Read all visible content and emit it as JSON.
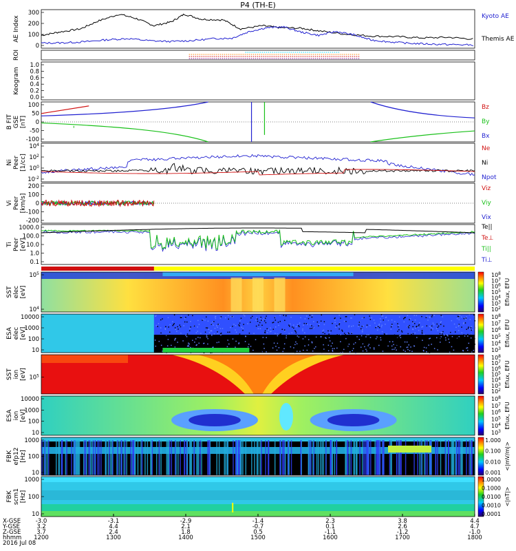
{
  "title": "P4 (TH-E)",
  "colors": {
    "black": "#000000",
    "blue": "#1f1fd0",
    "red": "#d01010",
    "green": "#18c018",
    "yellow": "#ffff00"
  },
  "chart_data": [
    {
      "id": "ae",
      "type": "line",
      "ylabel": "AE Index",
      "ylim": [
        0,
        300
      ],
      "yticks": [
        "0",
        "100",
        "200",
        "300"
      ],
      "legend": [
        {
          "text": "Kyoto AE",
          "color": "#1f1fd0"
        },
        {
          "text": "Themis AE",
          "color": "#000000"
        }
      ],
      "series": [
        {
          "name": "Themis AE",
          "color": "#000000",
          "x": [
            0,
            4,
            9,
            13,
            18,
            22,
            26,
            30,
            33,
            37,
            42,
            46,
            51,
            55,
            60,
            64,
            70,
            76,
            82,
            88,
            94,
            100
          ],
          "y": [
            100,
            125,
            150,
            210,
            265,
            230,
            175,
            205,
            265,
            225,
            220,
            150,
            175,
            160,
            155,
            135,
            110,
            95,
            90,
            80,
            85,
            70
          ]
        },
        {
          "name": "Kyoto AE",
          "color": "#1f1fd0",
          "x": [
            0,
            5,
            10,
            15,
            20,
            25,
            30,
            35,
            40,
            44,
            48,
            52,
            56,
            60,
            64,
            68,
            72,
            76,
            80,
            85,
            90,
            95,
            100
          ],
          "y": [
            40,
            42,
            50,
            65,
            75,
            58,
            52,
            60,
            75,
            78,
            130,
            160,
            165,
            125,
            100,
            130,
            105,
            65,
            50,
            38,
            32,
            28,
            25
          ]
        }
      ]
    },
    {
      "id": "roi",
      "type": "line",
      "ylabel": "ROI"
    },
    {
      "id": "keogram",
      "type": "line",
      "ylabel": "Keogram",
      "ylim": [
        0.0,
        1.0
      ],
      "yticks": [
        "0.0",
        "0.2",
        "0.4",
        "0.6",
        "0.8",
        "1.0"
      ]
    },
    {
      "id": "bfit",
      "type": "line",
      "ylabel": "B FIT\nGSE\n[nT]",
      "ylim": [
        -100,
        100
      ],
      "yticks": [
        "-100",
        "-50",
        "0",
        "50",
        "100"
      ],
      "legend": [
        {
          "text": "Bz",
          "color": "#d01010"
        },
        {
          "text": "By",
          "color": "#18c018"
        },
        {
          "text": "Bx",
          "color": "#1f1fd0"
        }
      ],
      "series": [
        {
          "name": "Bz",
          "color": "#d01010",
          "x": [
            0,
            3,
            6,
            9,
            12
          ],
          "y": [
            42,
            52,
            62,
            72,
            80
          ]
        },
        {
          "name": "By",
          "color": "#18c018",
          "x": [
            0,
            8,
            16,
            24,
            30,
            36,
            39,
            40
          ],
          "y": [
            -20,
            -25,
            -30,
            -40,
            -55,
            -75,
            -95,
            -100
          ]
        },
        {
          "name": "Bx",
          "color": "#1f1fd0",
          "x": [
            0,
            6,
            12,
            18,
            24,
            30,
            35,
            38,
            40
          ],
          "y": [
            5,
            15,
            25,
            40,
            55,
            70,
            85,
            95,
            100
          ]
        }
      ]
    },
    {
      "id": "density",
      "type": "line",
      "ylabel": "Ni\nPeer\n[1/cc]",
      "ylim": [
        "10^-3",
        "10^4"
      ],
      "yticks": [
        "10^4",
        "10^2",
        "10^0",
        "10^-2"
      ],
      "legend": [
        {
          "text": "Ne",
          "color": "#d01010"
        },
        {
          "text": "Ni",
          "color": "#000000"
        },
        {
          "text": "Npot",
          "color": "#1f1fd0"
        }
      ]
    },
    {
      "id": "velocity",
      "type": "line",
      "ylabel": "Vi\nPeer\n[km/s]",
      "ylim": [
        -300,
        300
      ],
      "yticks": [
        "200",
        "100",
        "0",
        "-100",
        "-200"
      ],
      "legend": [
        {
          "text": "Viz",
          "color": "#d01010"
        },
        {
          "text": "Viy",
          "color": "#18c018"
        },
        {
          "text": "Vix",
          "color": "#1f1fd0"
        }
      ]
    },
    {
      "id": "temp",
      "type": "line",
      "ylabel": "Ti\nPeer\n[eV]",
      "ylim": [
        "0.1",
        "1000.0"
      ],
      "yticks": [
        "1000.0",
        "100.0",
        "10.0",
        "1.0",
        "0.1"
      ],
      "legend": [
        {
          "text": "Te||",
          "color": "#000000"
        },
        {
          "text": "Te⊥",
          "color": "#d01010"
        },
        {
          "text": "Ti||",
          "color": "#18c018"
        },
        {
          "text": "Ti⊥",
          "color": "#1f1fd0"
        }
      ]
    },
    {
      "id": "sst_e",
      "type": "heatmap",
      "ylabel": "SST\nelec\n[eV]",
      "yticks": [
        "10^5",
        "10^4"
      ],
      "colorbar": [
        "10^8",
        "10^7",
        "10^6",
        "10^5",
        "10^4",
        "10^3",
        "10^2"
      ],
      "cbar_label": "Eflux, EFU"
    },
    {
      "id": "esa_e",
      "type": "heatmap",
      "ylabel": "ESA\nelec\n[eV]",
      "yticks": [
        "10000",
        "1000",
        "100",
        "10"
      ],
      "colorbar": [
        "10^8",
        "10^7",
        "10^6",
        "10^5",
        "10^4",
        "10^3"
      ],
      "cbar_label": "Eflux, EFU"
    },
    {
      "id": "sst_i",
      "type": "heatmap",
      "ylabel": "SST\nion\n[eV]",
      "yticks": [
        "10^5"
      ],
      "colorbar": [
        "10^8",
        "10^7",
        "10^6",
        "10^5",
        "10^4",
        "10^3",
        "10^2"
      ],
      "cbar_label": "Eflux, EFU"
    },
    {
      "id": "esa_i",
      "type": "heatmap",
      "ylabel": "ESA\nion\n[eV]",
      "yticks": [
        "10000",
        "1000",
        "100",
        "10"
      ],
      "colorbar": [
        "10^8",
        "10^7",
        "10^6",
        "10^5",
        "10^4",
        "10^3"
      ],
      "cbar_label": "Eflux, EFU"
    },
    {
      "id": "fbk_e",
      "type": "heatmap",
      "ylabel": "FBK\nefp12\n[Hz]",
      "yticks": [
        "1000",
        "100",
        "10"
      ],
      "colorbar": [
        "1.000",
        "0.100",
        "0.010",
        "0.001"
      ],
      "cbar_label": "<|mV/m|>"
    },
    {
      "id": "fbk_s",
      "type": "heatmap",
      "ylabel": "FBK\nscm1\n[Hz]",
      "yticks": [
        "1000",
        "100",
        "10"
      ],
      "colorbar": [
        "1.0000",
        "0.1000",
        "0.0100",
        "0.0010",
        "0.0001"
      ],
      "cbar_label": "<|nT|>"
    }
  ],
  "xaxis": {
    "row_labels": [
      "X-GSE",
      "Y-GSE",
      "Z-GSE",
      "hhmm",
      "2016 Jul 08"
    ],
    "ticks": [
      {
        "vals": [
          "-3.0",
          "3.2",
          "3.7",
          "1200"
        ]
      },
      {
        "vals": [
          "-3.1",
          "4.4",
          "2.4",
          "1300"
        ]
      },
      {
        "vals": [
          "-2.9",
          "2.1",
          "1.8",
          "1400"
        ]
      },
      {
        "vals": [
          "-1.4",
          "-0.7",
          "0.5",
          "1500"
        ]
      },
      {
        "vals": [
          "2.3",
          "0.1",
          "-1.1",
          "1600"
        ]
      },
      {
        "vals": [
          "3.8",
          "2.6",
          "-1.2",
          "1700"
        ]
      },
      {
        "vals": [
          "4.4",
          "4.7",
          "-1.0",
          "1800"
        ]
      }
    ]
  }
}
